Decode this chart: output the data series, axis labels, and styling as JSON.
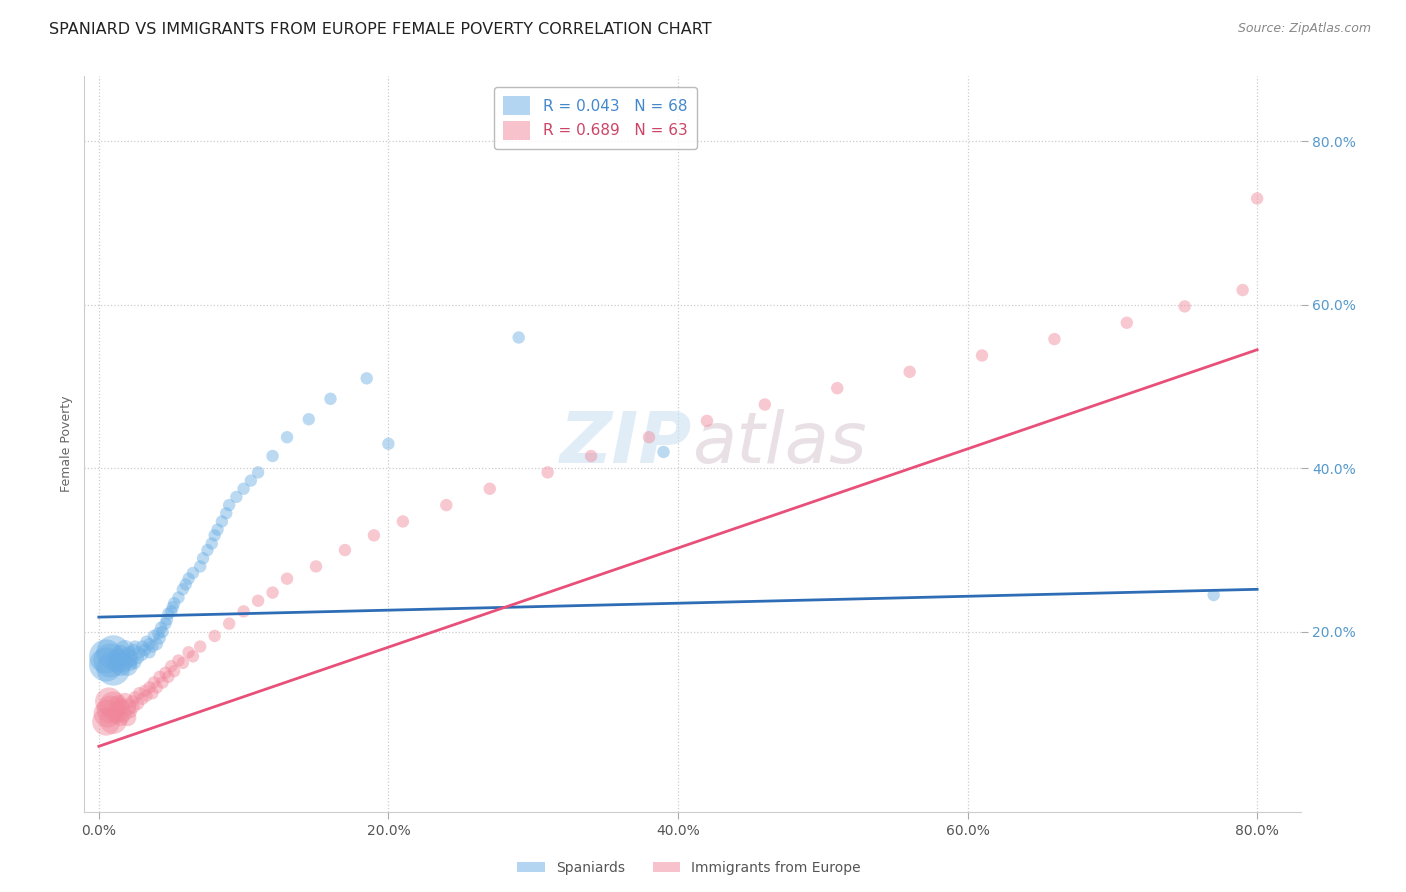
{
  "title": "SPANIARD VS IMMIGRANTS FROM EUROPE FEMALE POVERTY CORRELATION CHART",
  "source": "Source: ZipAtlas.com",
  "ylabel_label": "Female Poverty",
  "x_tick_positions": [
    0.0,
    0.2,
    0.4,
    0.6,
    0.8
  ],
  "y_tick_positions": [
    0.2,
    0.4,
    0.6,
    0.8
  ],
  "xlim": [
    -0.01,
    0.83
  ],
  "ylim": [
    -0.02,
    0.88
  ],
  "blue_color": "#6aade4",
  "pink_color": "#f0869a",
  "blue_line_color": "#2e6db5",
  "pink_line_color": "#e8507a",
  "blue_line_x": [
    0.0,
    0.8
  ],
  "blue_line_y": [
    0.218,
    0.252
  ],
  "pink_line_x": [
    0.0,
    0.8
  ],
  "pink_line_y": [
    0.06,
    0.545
  ],
  "grid_color": "#cccccc",
  "bg_color": "#ffffff",
  "title_fontsize": 11.5,
  "source_fontsize": 9,
  "legend_fontsize": 11,
  "axis_label_fontsize": 9,
  "tick_fontsize": 10,
  "legend_label_blue": "R = 0.043   N = 68",
  "legend_label_pink": "R = 0.689   N = 63",
  "legend_text_blue": "#4488cc",
  "legend_text_pink": "#cc4466",
  "legend_n_color": "#cc4444",
  "bottom_legend_blue": "Spaniards",
  "bottom_legend_pink": "Immigrants from Europe",
  "spaniards_x": [
    0.005,
    0.005,
    0.008,
    0.01,
    0.01,
    0.012,
    0.013,
    0.015,
    0.015,
    0.017,
    0.018,
    0.02,
    0.02,
    0.021,
    0.022,
    0.022,
    0.023,
    0.024,
    0.025,
    0.025,
    0.027,
    0.028,
    0.03,
    0.03,
    0.032,
    0.033,
    0.035,
    0.035,
    0.037,
    0.038,
    0.04,
    0.041,
    0.042,
    0.043,
    0.044,
    0.046,
    0.047,
    0.048,
    0.05,
    0.051,
    0.052,
    0.055,
    0.058,
    0.06,
    0.062,
    0.065,
    0.07,
    0.072,
    0.075,
    0.078,
    0.08,
    0.082,
    0.085,
    0.088,
    0.09,
    0.095,
    0.1,
    0.105,
    0.11,
    0.12,
    0.13,
    0.145,
    0.16,
    0.185,
    0.2,
    0.29,
    0.39,
    0.77
  ],
  "spaniards_y": [
    0.16,
    0.17,
    0.165,
    0.155,
    0.175,
    0.162,
    0.168,
    0.158,
    0.172,
    0.163,
    0.178,
    0.158,
    0.168,
    0.175,
    0.16,
    0.17,
    0.165,
    0.178,
    0.162,
    0.182,
    0.168,
    0.175,
    0.172,
    0.182,
    0.178,
    0.188,
    0.175,
    0.185,
    0.182,
    0.195,
    0.185,
    0.198,
    0.192,
    0.205,
    0.2,
    0.21,
    0.215,
    0.222,
    0.225,
    0.23,
    0.235,
    0.242,
    0.252,
    0.258,
    0.265,
    0.272,
    0.28,
    0.29,
    0.3,
    0.308,
    0.318,
    0.325,
    0.335,
    0.345,
    0.355,
    0.365,
    0.375,
    0.385,
    0.395,
    0.415,
    0.438,
    0.46,
    0.485,
    0.51,
    0.43,
    0.56,
    0.42,
    0.245
  ],
  "spaniards_size_big": 1,
  "spaniards_big_indices": [
    0
  ],
  "immigrants_x": [
    0.005,
    0.006,
    0.007,
    0.008,
    0.01,
    0.01,
    0.012,
    0.013,
    0.015,
    0.015,
    0.017,
    0.018,
    0.02,
    0.02,
    0.022,
    0.023,
    0.024,
    0.025,
    0.027,
    0.028,
    0.03,
    0.032,
    0.033,
    0.035,
    0.037,
    0.038,
    0.04,
    0.042,
    0.044,
    0.046,
    0.048,
    0.05,
    0.052,
    0.055,
    0.058,
    0.062,
    0.065,
    0.07,
    0.08,
    0.09,
    0.1,
    0.11,
    0.12,
    0.13,
    0.15,
    0.17,
    0.19,
    0.21,
    0.24,
    0.27,
    0.31,
    0.34,
    0.38,
    0.42,
    0.46,
    0.51,
    0.56,
    0.61,
    0.66,
    0.71,
    0.75,
    0.79,
    0.8
  ],
  "immigrants_y": [
    0.09,
    0.1,
    0.115,
    0.105,
    0.092,
    0.11,
    0.098,
    0.112,
    0.095,
    0.108,
    0.1,
    0.115,
    0.095,
    0.108,
    0.102,
    0.115,
    0.108,
    0.12,
    0.112,
    0.125,
    0.118,
    0.128,
    0.122,
    0.132,
    0.125,
    0.138,
    0.132,
    0.145,
    0.138,
    0.15,
    0.145,
    0.158,
    0.152,
    0.165,
    0.162,
    0.175,
    0.17,
    0.182,
    0.195,
    0.21,
    0.225,
    0.238,
    0.248,
    0.265,
    0.28,
    0.3,
    0.318,
    0.335,
    0.355,
    0.375,
    0.395,
    0.415,
    0.438,
    0.458,
    0.478,
    0.498,
    0.518,
    0.538,
    0.558,
    0.578,
    0.598,
    0.618,
    0.73
  ]
}
